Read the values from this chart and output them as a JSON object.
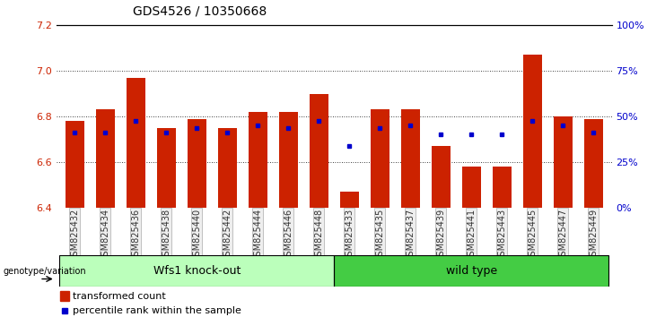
{
  "title": "GDS4526 / 10350668",
  "samples": [
    "GSM825432",
    "GSM825434",
    "GSM825436",
    "GSM825438",
    "GSM825440",
    "GSM825442",
    "GSM825444",
    "GSM825446",
    "GSM825448",
    "GSM825433",
    "GSM825435",
    "GSM825437",
    "GSM825439",
    "GSM825441",
    "GSM825443",
    "GSM825445",
    "GSM825447",
    "GSM825449"
  ],
  "red_values": [
    6.78,
    6.83,
    6.97,
    6.75,
    6.79,
    6.75,
    6.82,
    6.82,
    6.9,
    6.47,
    6.83,
    6.83,
    6.67,
    6.58,
    6.58,
    7.07,
    6.8,
    6.79
  ],
  "blue_values": [
    6.73,
    6.73,
    6.78,
    6.73,
    6.75,
    6.73,
    6.76,
    6.75,
    6.78,
    6.67,
    6.75,
    6.76,
    6.72,
    6.72,
    6.72,
    6.78,
    6.76,
    6.73
  ],
  "group1_label": "Wfs1 knock-out",
  "group2_label": "wild type",
  "group1_count": 9,
  "group2_count": 9,
  "ymin": 6.4,
  "ymax": 7.2,
  "yticks": [
    6.4,
    6.6,
    6.8,
    7.0,
    7.2
  ],
  "right_yticks": [
    0,
    25,
    50,
    75,
    100
  ],
  "bar_color": "#cc2200",
  "dot_color": "#0000cc",
  "group1_color": "#bbffbb",
  "group2_color": "#44cc44",
  "label_color_red": "#cc2200",
  "label_color_blue": "#0000cc"
}
